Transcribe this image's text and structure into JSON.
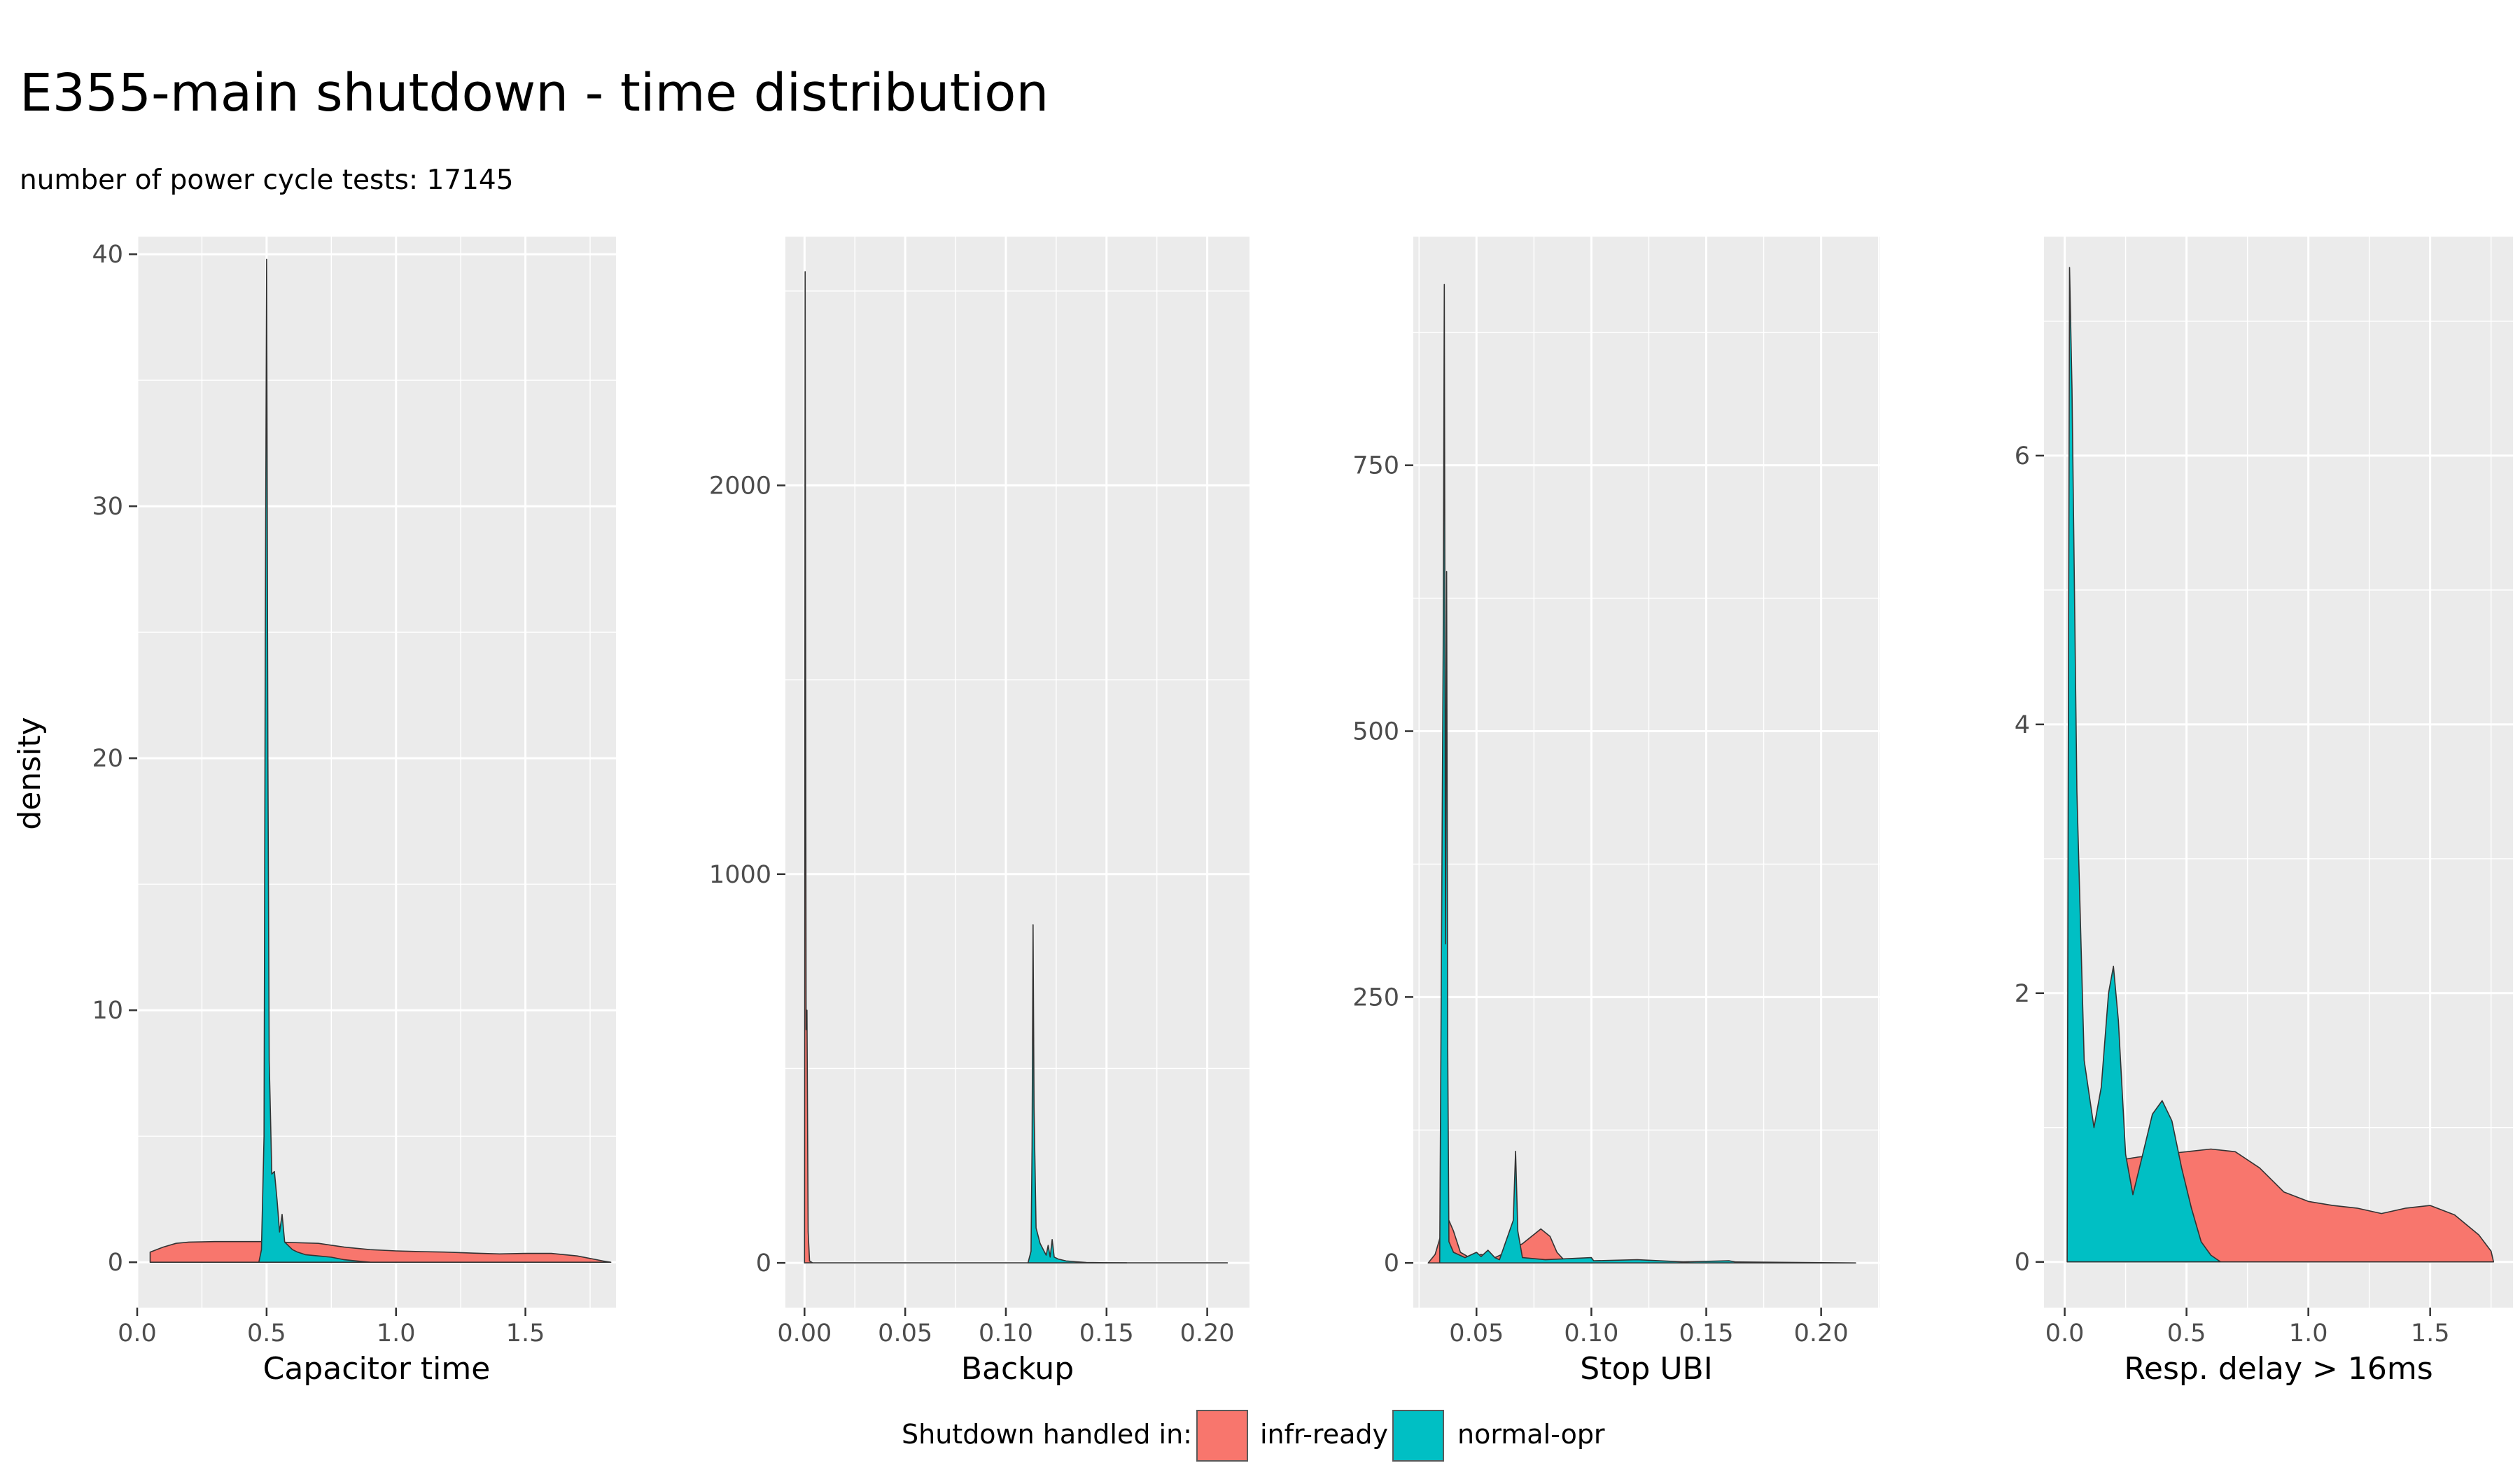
{
  "title": "E355-main shutdown - time distribution",
  "subtitle": "number of power cycle tests: 17145",
  "legend": {
    "title": "Shutdown handled in:",
    "position": "bottom",
    "items": [
      {
        "label": "infr-ready",
        "color": "#F8766D"
      },
      {
        "label": "normal-opr",
        "color": "#00BFC4"
      }
    ]
  },
  "chart_data": {
    "type": "area",
    "ylabel": "density",
    "grid": true,
    "panel_background": "#EBEBEB",
    "facets": [
      {
        "xlabel": "Capacitor time",
        "xlim": [
          0.0,
          1.85
        ],
        "ylim": [
          -1.8,
          40.7
        ],
        "x_ticks": [
          0.0,
          0.5,
          1.0,
          1.5
        ],
        "x_tick_labels": [
          "0.0",
          "0.5",
          "1.0",
          "1.5"
        ],
        "y_ticks": [
          0,
          10,
          20,
          30,
          40
        ],
        "y_tick_labels": [
          "0",
          "10",
          "20",
          "30",
          "40"
        ],
        "series": [
          {
            "name": "infr-ready",
            "color": "#F8766D",
            "points": [
              [
                0.05,
                0
              ],
              [
                0.05,
                0.4
              ],
              [
                0.1,
                0.6
              ],
              [
                0.15,
                0.75
              ],
              [
                0.2,
                0.8
              ],
              [
                0.3,
                0.82
              ],
              [
                0.4,
                0.82
              ],
              [
                0.5,
                0.82
              ],
              [
                0.55,
                0.8
              ],
              [
                0.6,
                0.78
              ],
              [
                0.7,
                0.75
              ],
              [
                0.8,
                0.6
              ],
              [
                0.9,
                0.5
              ],
              [
                1.0,
                0.45
              ],
              [
                1.1,
                0.42
              ],
              [
                1.2,
                0.4
              ],
              [
                1.3,
                0.36
              ],
              [
                1.4,
                0.33
              ],
              [
                1.5,
                0.35
              ],
              [
                1.6,
                0.35
              ],
              [
                1.7,
                0.25
              ],
              [
                1.8,
                0.05
              ],
              [
                1.83,
                0
              ]
            ]
          },
          {
            "name": "normal-opr",
            "color": "#00BFC4",
            "points": [
              [
                0.47,
                0
              ],
              [
                0.48,
                0.5
              ],
              [
                0.49,
                5
              ],
              [
                0.495,
                25
              ],
              [
                0.5,
                39.8
              ],
              [
                0.505,
                20
              ],
              [
                0.51,
                8
              ],
              [
                0.52,
                3.5
              ],
              [
                0.53,
                3.6
              ],
              [
                0.54,
                2.5
              ],
              [
                0.55,
                1.2
              ],
              [
                0.56,
                1.9
              ],
              [
                0.57,
                0.8
              ],
              [
                0.6,
                0.5
              ],
              [
                0.62,
                0.4
              ],
              [
                0.65,
                0.3
              ],
              [
                0.7,
                0.25
              ],
              [
                0.75,
                0.2
              ],
              [
                0.8,
                0.1
              ],
              [
                0.85,
                0.05
              ],
              [
                0.9,
                0
              ]
            ]
          }
        ]
      },
      {
        "xlabel": "Backup",
        "xlim": [
          -0.0095,
          0.221
        ],
        "ylim": [
          -115,
          2640
        ],
        "x_ticks": [
          0.0,
          0.05,
          0.1,
          0.15,
          0.2
        ],
        "x_tick_labels": [
          "0.00",
          "0.05",
          "0.10",
          "0.15",
          "0.20"
        ],
        "y_ticks": [
          0,
          1000,
          2000
        ],
        "y_tick_labels": [
          "0",
          "1000",
          "2000"
        ],
        "series": [
          {
            "name": "infr-ready",
            "color": "#F8766D",
            "points": [
              [
                0.0,
                0
              ],
              [
                0.0003,
                2550
              ],
              [
                0.0008,
                600
              ],
              [
                0.0012,
                650
              ],
              [
                0.0018,
                80
              ],
              [
                0.0025,
                5
              ],
              [
                0.004,
                0
              ],
              [
                0.21,
                0
              ]
            ]
          },
          {
            "name": "normal-opr",
            "color": "#00BFC4",
            "points": [
              [
                0.111,
                0
              ],
              [
                0.1125,
                30
              ],
              [
                0.113,
                300
              ],
              [
                0.1135,
                870
              ],
              [
                0.114,
                400
              ],
              [
                0.115,
                90
              ],
              [
                0.117,
                50
              ],
              [
                0.119,
                30
              ],
              [
                0.12,
                20
              ],
              [
                0.121,
                45
              ],
              [
                0.122,
                15
              ],
              [
                0.123,
                60
              ],
              [
                0.124,
                15
              ],
              [
                0.126,
                10
              ],
              [
                0.13,
                5
              ],
              [
                0.135,
                3
              ],
              [
                0.14,
                1
              ],
              [
                0.15,
                0.5
              ],
              [
                0.16,
                0
              ]
            ]
          }
        ]
      },
      {
        "xlabel": "Stop UBI",
        "xlim": [
          0.0225,
          0.2254
        ],
        "ylim": [
          -42,
          965
        ],
        "x_ticks": [
          0.05,
          0.1,
          0.15,
          0.2
        ],
        "x_tick_labels": [
          "0.05",
          "0.10",
          "0.15",
          "0.20"
        ],
        "y_ticks": [
          0,
          250,
          500,
          750
        ],
        "y_tick_labels": [
          "0",
          "250",
          "500",
          "750"
        ],
        "series": [
          {
            "name": "infr-ready",
            "color": "#F8766D",
            "points": [
              [
                0.029,
                0
              ],
              [
                0.032,
                8
              ],
              [
                0.035,
                30
              ],
              [
                0.037,
                45
              ],
              [
                0.04,
                30
              ],
              [
                0.043,
                10
              ],
              [
                0.047,
                5
              ],
              [
                0.052,
                8
              ],
              [
                0.058,
                5
              ],
              [
                0.063,
                10
              ],
              [
                0.067,
                15
              ],
              [
                0.07,
                18
              ],
              [
                0.074,
                25
              ],
              [
                0.078,
                32
              ],
              [
                0.082,
                25
              ],
              [
                0.085,
                10
              ],
              [
                0.088,
                3
              ],
              [
                0.095,
                1
              ],
              [
                0.12,
                1
              ],
              [
                0.16,
                1
              ],
              [
                0.215,
                0
              ]
            ]
          },
          {
            "name": "normal-opr",
            "color": "#00BFC4",
            "points": [
              [
                0.034,
                0
              ],
              [
                0.0355,
                580
              ],
              [
                0.036,
                920
              ],
              [
                0.0365,
                300
              ],
              [
                0.037,
                650
              ],
              [
                0.0375,
                200
              ],
              [
                0.038,
                20
              ],
              [
                0.04,
                10
              ],
              [
                0.045,
                5
              ],
              [
                0.05,
                10
              ],
              [
                0.052,
                6
              ],
              [
                0.055,
                12
              ],
              [
                0.058,
                5
              ],
              [
                0.06,
                3
              ],
              [
                0.066,
                40
              ],
              [
                0.067,
                105
              ],
              [
                0.068,
                30
              ],
              [
                0.07,
                5
              ],
              [
                0.08,
                3
              ],
              [
                0.1,
                5
              ],
              [
                0.101,
                2
              ],
              [
                0.12,
                3
              ],
              [
                0.14,
                1
              ],
              [
                0.16,
                2
              ],
              [
                0.165,
                0
              ]
            ]
          }
        ]
      },
      {
        "xlabel": "Resp. delay > 16ms",
        "xlim": [
          -0.085,
          1.84
        ],
        "ylim": [
          -0.34,
          7.63
        ],
        "x_ticks": [
          0.0,
          0.5,
          1.0,
          1.5
        ],
        "x_tick_labels": [
          "0.0",
          "0.5",
          "1.0",
          "1.5"
        ],
        "y_ticks": [
          0,
          2,
          4,
          6
        ],
        "y_tick_labels": [
          "0",
          "2",
          "4",
          "6"
        ],
        "series": [
          {
            "name": "infr-ready",
            "color": "#F8766D",
            "points": [
              [
                0.02,
                0
              ],
              [
                0.02,
                0.4
              ],
              [
                0.05,
                0.55
              ],
              [
                0.1,
                0.65
              ],
              [
                0.15,
                0.7
              ],
              [
                0.2,
                0.75
              ],
              [
                0.3,
                0.78
              ],
              [
                0.4,
                0.8
              ],
              [
                0.5,
                0.82
              ],
              [
                0.6,
                0.84
              ],
              [
                0.7,
                0.82
              ],
              [
                0.8,
                0.7
              ],
              [
                0.9,
                0.52
              ],
              [
                1.0,
                0.45
              ],
              [
                1.1,
                0.42
              ],
              [
                1.2,
                0.4
              ],
              [
                1.3,
                0.36
              ],
              [
                1.4,
                0.4
              ],
              [
                1.5,
                0.42
              ],
              [
                1.6,
                0.35
              ],
              [
                1.7,
                0.2
              ],
              [
                1.75,
                0.08
              ],
              [
                1.76,
                0
              ]
            ]
          },
          {
            "name": "normal-opr",
            "color": "#00BFC4",
            "points": [
              [
                0.01,
                0
              ],
              [
                0.015,
                4
              ],
              [
                0.02,
                7.4
              ],
              [
                0.03,
                6.5
              ],
              [
                0.05,
                3.5
              ],
              [
                0.08,
                1.5
              ],
              [
                0.12,
                1.0
              ],
              [
                0.15,
                1.3
              ],
              [
                0.18,
                2.0
              ],
              [
                0.2,
                2.2
              ],
              [
                0.22,
                1.8
              ],
              [
                0.25,
                0.8
              ],
              [
                0.28,
                0.5
              ],
              [
                0.32,
                0.8
              ],
              [
                0.36,
                1.1
              ],
              [
                0.4,
                1.2
              ],
              [
                0.44,
                1.05
              ],
              [
                0.48,
                0.7
              ],
              [
                0.52,
                0.4
              ],
              [
                0.56,
                0.15
              ],
              [
                0.6,
                0.05
              ],
              [
                0.64,
                0
              ]
            ]
          }
        ]
      }
    ]
  }
}
